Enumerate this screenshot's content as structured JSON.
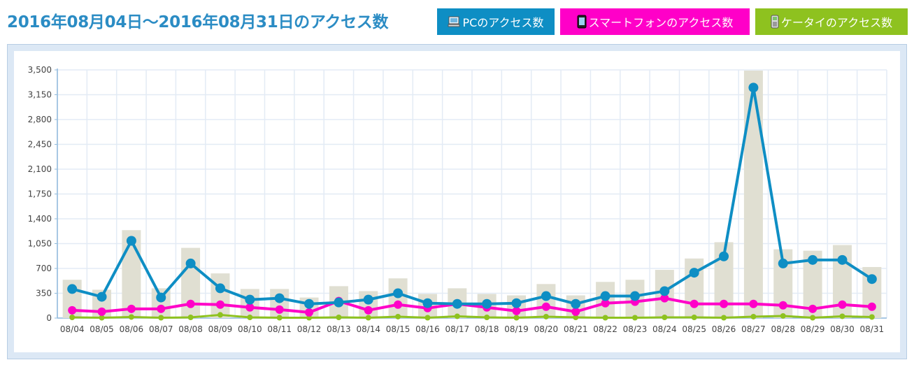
{
  "header": {
    "title": "2016年08月04日～2016年08月31日のアクセス数",
    "legend": [
      {
        "label": "PCのアクセス数",
        "color": "#0e8ec4",
        "icon": "pc-icon"
      },
      {
        "label": "スマートフォンのアクセス数",
        "color": "#ff00c8",
        "icon": "smartphone-icon"
      },
      {
        "label": "ケータイのアクセス数",
        "color": "#8ec21f",
        "icon": "feature-phone-icon"
      }
    ]
  },
  "chart_data": {
    "type": "line",
    "ylim": [
      0,
      3500
    ],
    "yticks": [
      "0",
      "350",
      "700",
      "1,050",
      "1,400",
      "1,750",
      "2,100",
      "2,450",
      "2,800",
      "3,150",
      "3,500"
    ],
    "grid": true,
    "categories": [
      "08/04",
      "08/05",
      "08/06",
      "08/07",
      "08/08",
      "08/09",
      "08/10",
      "08/11",
      "08/12",
      "08/13",
      "08/14",
      "08/15",
      "08/16",
      "08/17",
      "08/18",
      "08/19",
      "08/20",
      "08/21",
      "08/22",
      "08/23",
      "08/24",
      "08/25",
      "08/26",
      "08/27",
      "08/28",
      "08/29",
      "08/30",
      "08/31"
    ],
    "bars": {
      "color": "#e0dfd2",
      "values": [
        540,
        400,
        1240,
        420,
        990,
        630,
        410,
        410,
        290,
        450,
        380,
        560,
        340,
        420,
        340,
        320,
        480,
        320,
        510,
        540,
        680,
        840,
        1070,
        3490,
        970,
        950,
        1030,
        720
      ]
    },
    "series": [
      {
        "color": "#0e8ec4",
        "values": [
          410,
          300,
          1090,
          290,
          770,
          420,
          260,
          280,
          200,
          220,
          260,
          350,
          210,
          200,
          200,
          210,
          310,
          200,
          310,
          310,
          380,
          640,
          870,
          3250,
          770,
          820,
          820,
          550
        ]
      },
      {
        "color": "#ff00c8",
        "values": [
          110,
          90,
          130,
          130,
          200,
          190,
          150,
          120,
          80,
          240,
          110,
          190,
          140,
          200,
          150,
          100,
          160,
          90,
          210,
          230,
          280,
          200,
          200,
          200,
          180,
          130,
          190,
          160
        ]
      },
      {
        "color": "#8ec21f",
        "values": [
          10,
          5,
          15,
          5,
          10,
          45,
          10,
          5,
          5,
          10,
          5,
          20,
          5,
          25,
          10,
          5,
          20,
          10,
          5,
          5,
          10,
          10,
          5,
          20,
          30,
          5,
          25,
          15
        ]
      }
    ]
  }
}
